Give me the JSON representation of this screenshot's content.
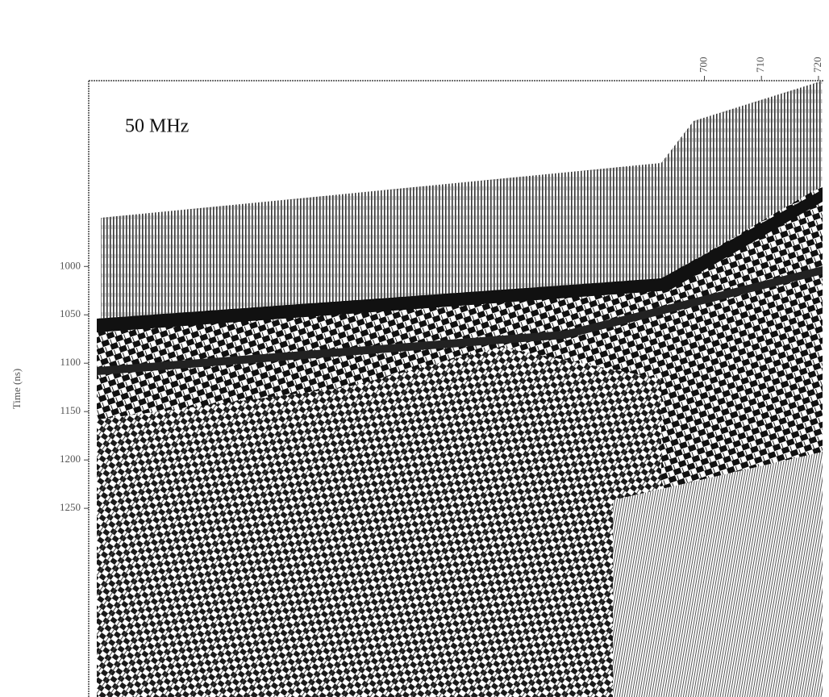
{
  "chart_data": {
    "type": "radargram",
    "annotation": "50 MHz",
    "y_label": "Time (ns)",
    "xlim": [
      592,
      721
    ],
    "xticks": [
      700,
      710,
      720
    ],
    "ylim": [
      808,
      1445
    ],
    "y_inverted": true,
    "yticks": [
      1000,
      1050,
      1100,
      1150,
      1200,
      1250
    ]
  }
}
